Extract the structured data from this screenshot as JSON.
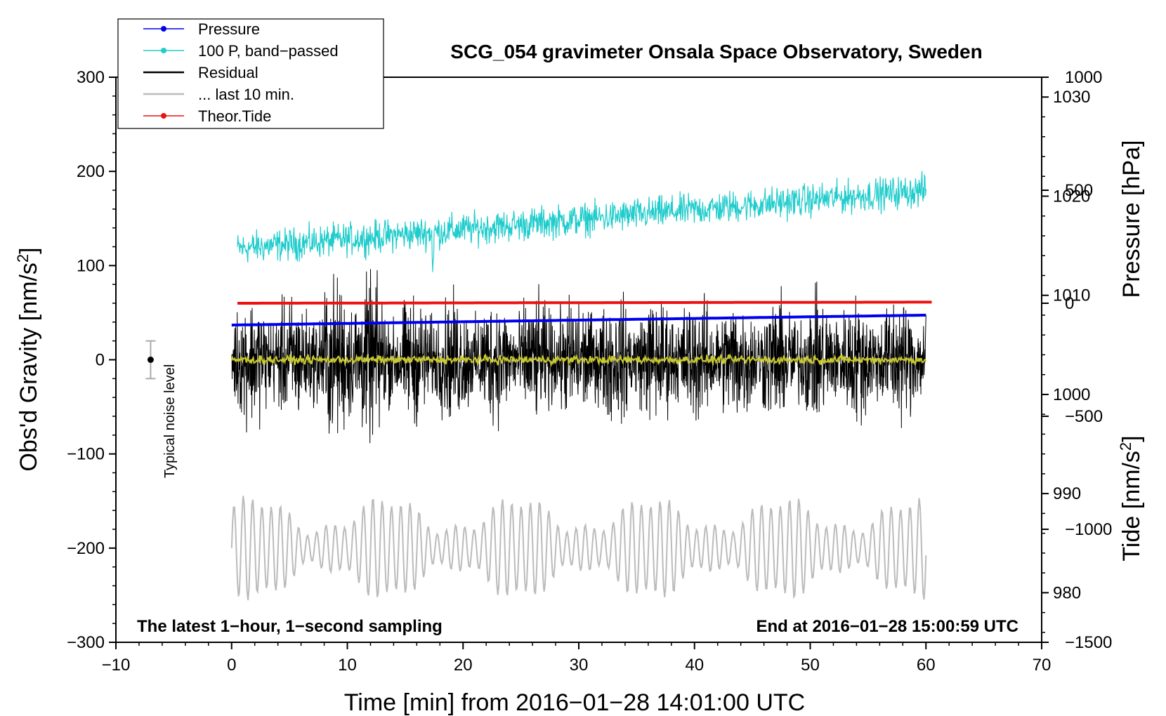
{
  "chart_data": {
    "type": "line",
    "title": "SCG_054 gravimeter Onsala Space Observatory, Sweden",
    "xlabel": "Time [min] from 2016−01−28 14:01:00 UTC",
    "ylabel_left": "Obs'd Gravity [nm/s",
    "ylabel_left_sup": "2",
    "ylabel_left_close": "]",
    "ylabel_right_pressure": "Pressure [hPa]",
    "ylabel_right_tide": "Tide [nm/s",
    "ylabel_right_tide_sup": "2",
    "ylabel_right_tide_close": "]",
    "xlim": [
      -10,
      70
    ],
    "ylim": [
      -300,
      300
    ],
    "pressure_ylim": [
      975,
      1032
    ],
    "tide_ylim": [
      -1500,
      1000
    ],
    "x_ticks": [
      "−10",
      "0",
      "10",
      "20",
      "30",
      "40",
      "50",
      "60",
      "70"
    ],
    "x_tick_values": [
      -10,
      0,
      10,
      20,
      30,
      40,
      50,
      60,
      70
    ],
    "y_ticks": [
      "300",
      "200",
      "100",
      "0",
      "−100",
      "−200",
      "−300"
    ],
    "y_tick_values": [
      300,
      200,
      100,
      0,
      -100,
      -200,
      -300
    ],
    "pressure_ticks": [
      "1030",
      "1020",
      "1010",
      "1000",
      "990",
      "980"
    ],
    "pressure_tick_values": [
      1030,
      1020,
      1010,
      1000,
      990,
      980
    ],
    "tide_ticks": [
      "1000",
      "500",
      "0",
      "−500",
      "−1000",
      "−1500"
    ],
    "tide_tick_values": [
      1000,
      500,
      0,
      -500,
      -1000,
      -1500
    ],
    "legend": [
      {
        "label": "Pressure",
        "color": "#0000ee",
        "marker": true
      },
      {
        "label": "100 P, band−passed",
        "color": "#22cccc",
        "marker": true
      },
      {
        "label": "Residual",
        "color": "#000000",
        "marker": false
      },
      {
        "label": "... last 10 min.",
        "color": "#bbbbbb",
        "marker": false
      },
      {
        "label": "Theor.Tide",
        "color": "#ee1111",
        "marker": true
      }
    ],
    "annotations": {
      "bottom_left": "The latest 1−hour, 1−second sampling",
      "bottom_right": "End at 2016−01−28 15:00:59 UTC",
      "noise_label": "Typical noise level"
    },
    "noise_bar": {
      "x": -7,
      "center": 0,
      "halfwidth": 20
    },
    "series": [
      {
        "name": "Pressure",
        "axis": "pressure",
        "color": "#0000ee",
        "x_range": [
          0,
          60
        ],
        "start": 1007.0,
        "end": 1008.0
      },
      {
        "name": "100 P, band-passed",
        "axis": "gravity",
        "color": "#22cccc",
        "x_range": [
          0.5,
          60
        ],
        "start": 118,
        "end": 180,
        "amplitude": 12
      },
      {
        "name": "Residual",
        "axis": "gravity",
        "color": "#000000",
        "x_range": [
          0,
          60
        ],
        "center": 0,
        "amplitude": 50
      },
      {
        "name": "Residual smoothed",
        "axis": "gravity",
        "color": "#c8c832",
        "x_range": [
          0,
          60
        ],
        "center": 0,
        "amplitude": 3
      },
      {
        "name": "... last 10 min.",
        "axis": "gravity",
        "color": "#bbbbbb",
        "x_range": [
          0,
          60
        ],
        "center": -200,
        "amplitude": 45
      },
      {
        "name": "Theor.Tide",
        "axis": "tide",
        "color": "#ee1111",
        "x_range": [
          0.5,
          60.5
        ],
        "start": 0,
        "end": 5
      }
    ]
  }
}
